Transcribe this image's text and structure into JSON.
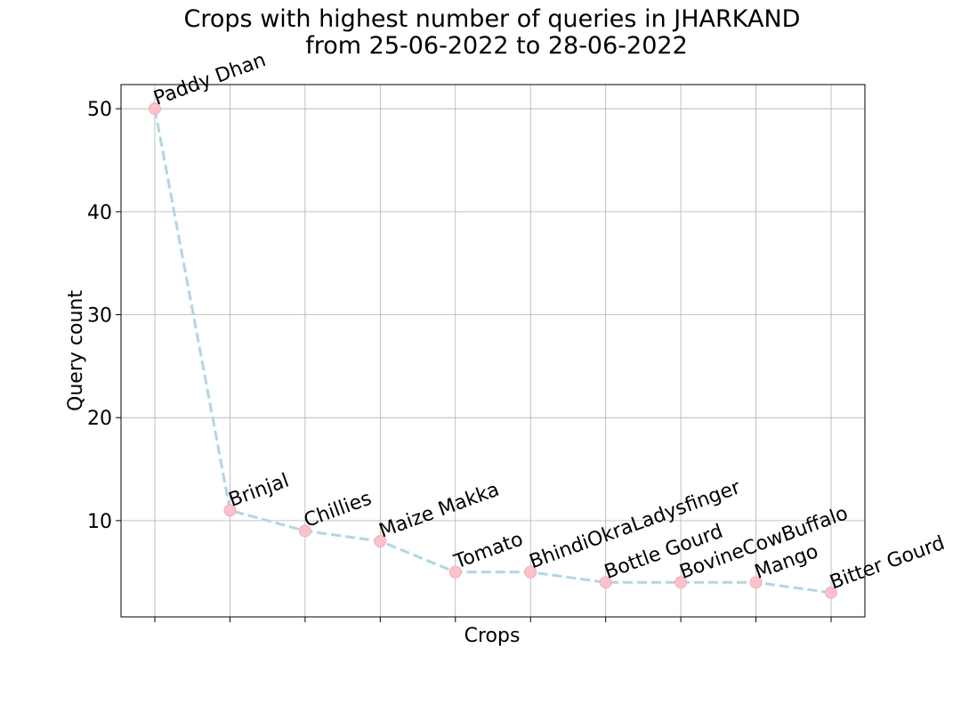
{
  "chart_data": {
    "type": "line",
    "title": "Crops with highest number of queries in JHARKAND",
    "subtitle": "from 25-06-2022 to 28-06-2022",
    "xlabel": "Crops",
    "ylabel": "Query count",
    "categories": [
      "Paddy Dhan",
      "Brinjal",
      "Chillies",
      "Maize Makka",
      "Tomato",
      "BhindiOkraLadysfinger",
      "Bottle Gourd",
      "BovineCowBuffalo",
      "Mango",
      "Bitter Gourd"
    ],
    "values": [
      50,
      11,
      9,
      8,
      5,
      5,
      4,
      4,
      4,
      3
    ],
    "yticks": [
      10,
      20,
      30,
      40,
      50
    ],
    "ylim": [
      0.65,
      52.35
    ],
    "grid": true,
    "show_x_tick_labels": false,
    "line_color": "#add8e6",
    "line_style": "dashed",
    "marker_color": "#ffc0cb"
  }
}
